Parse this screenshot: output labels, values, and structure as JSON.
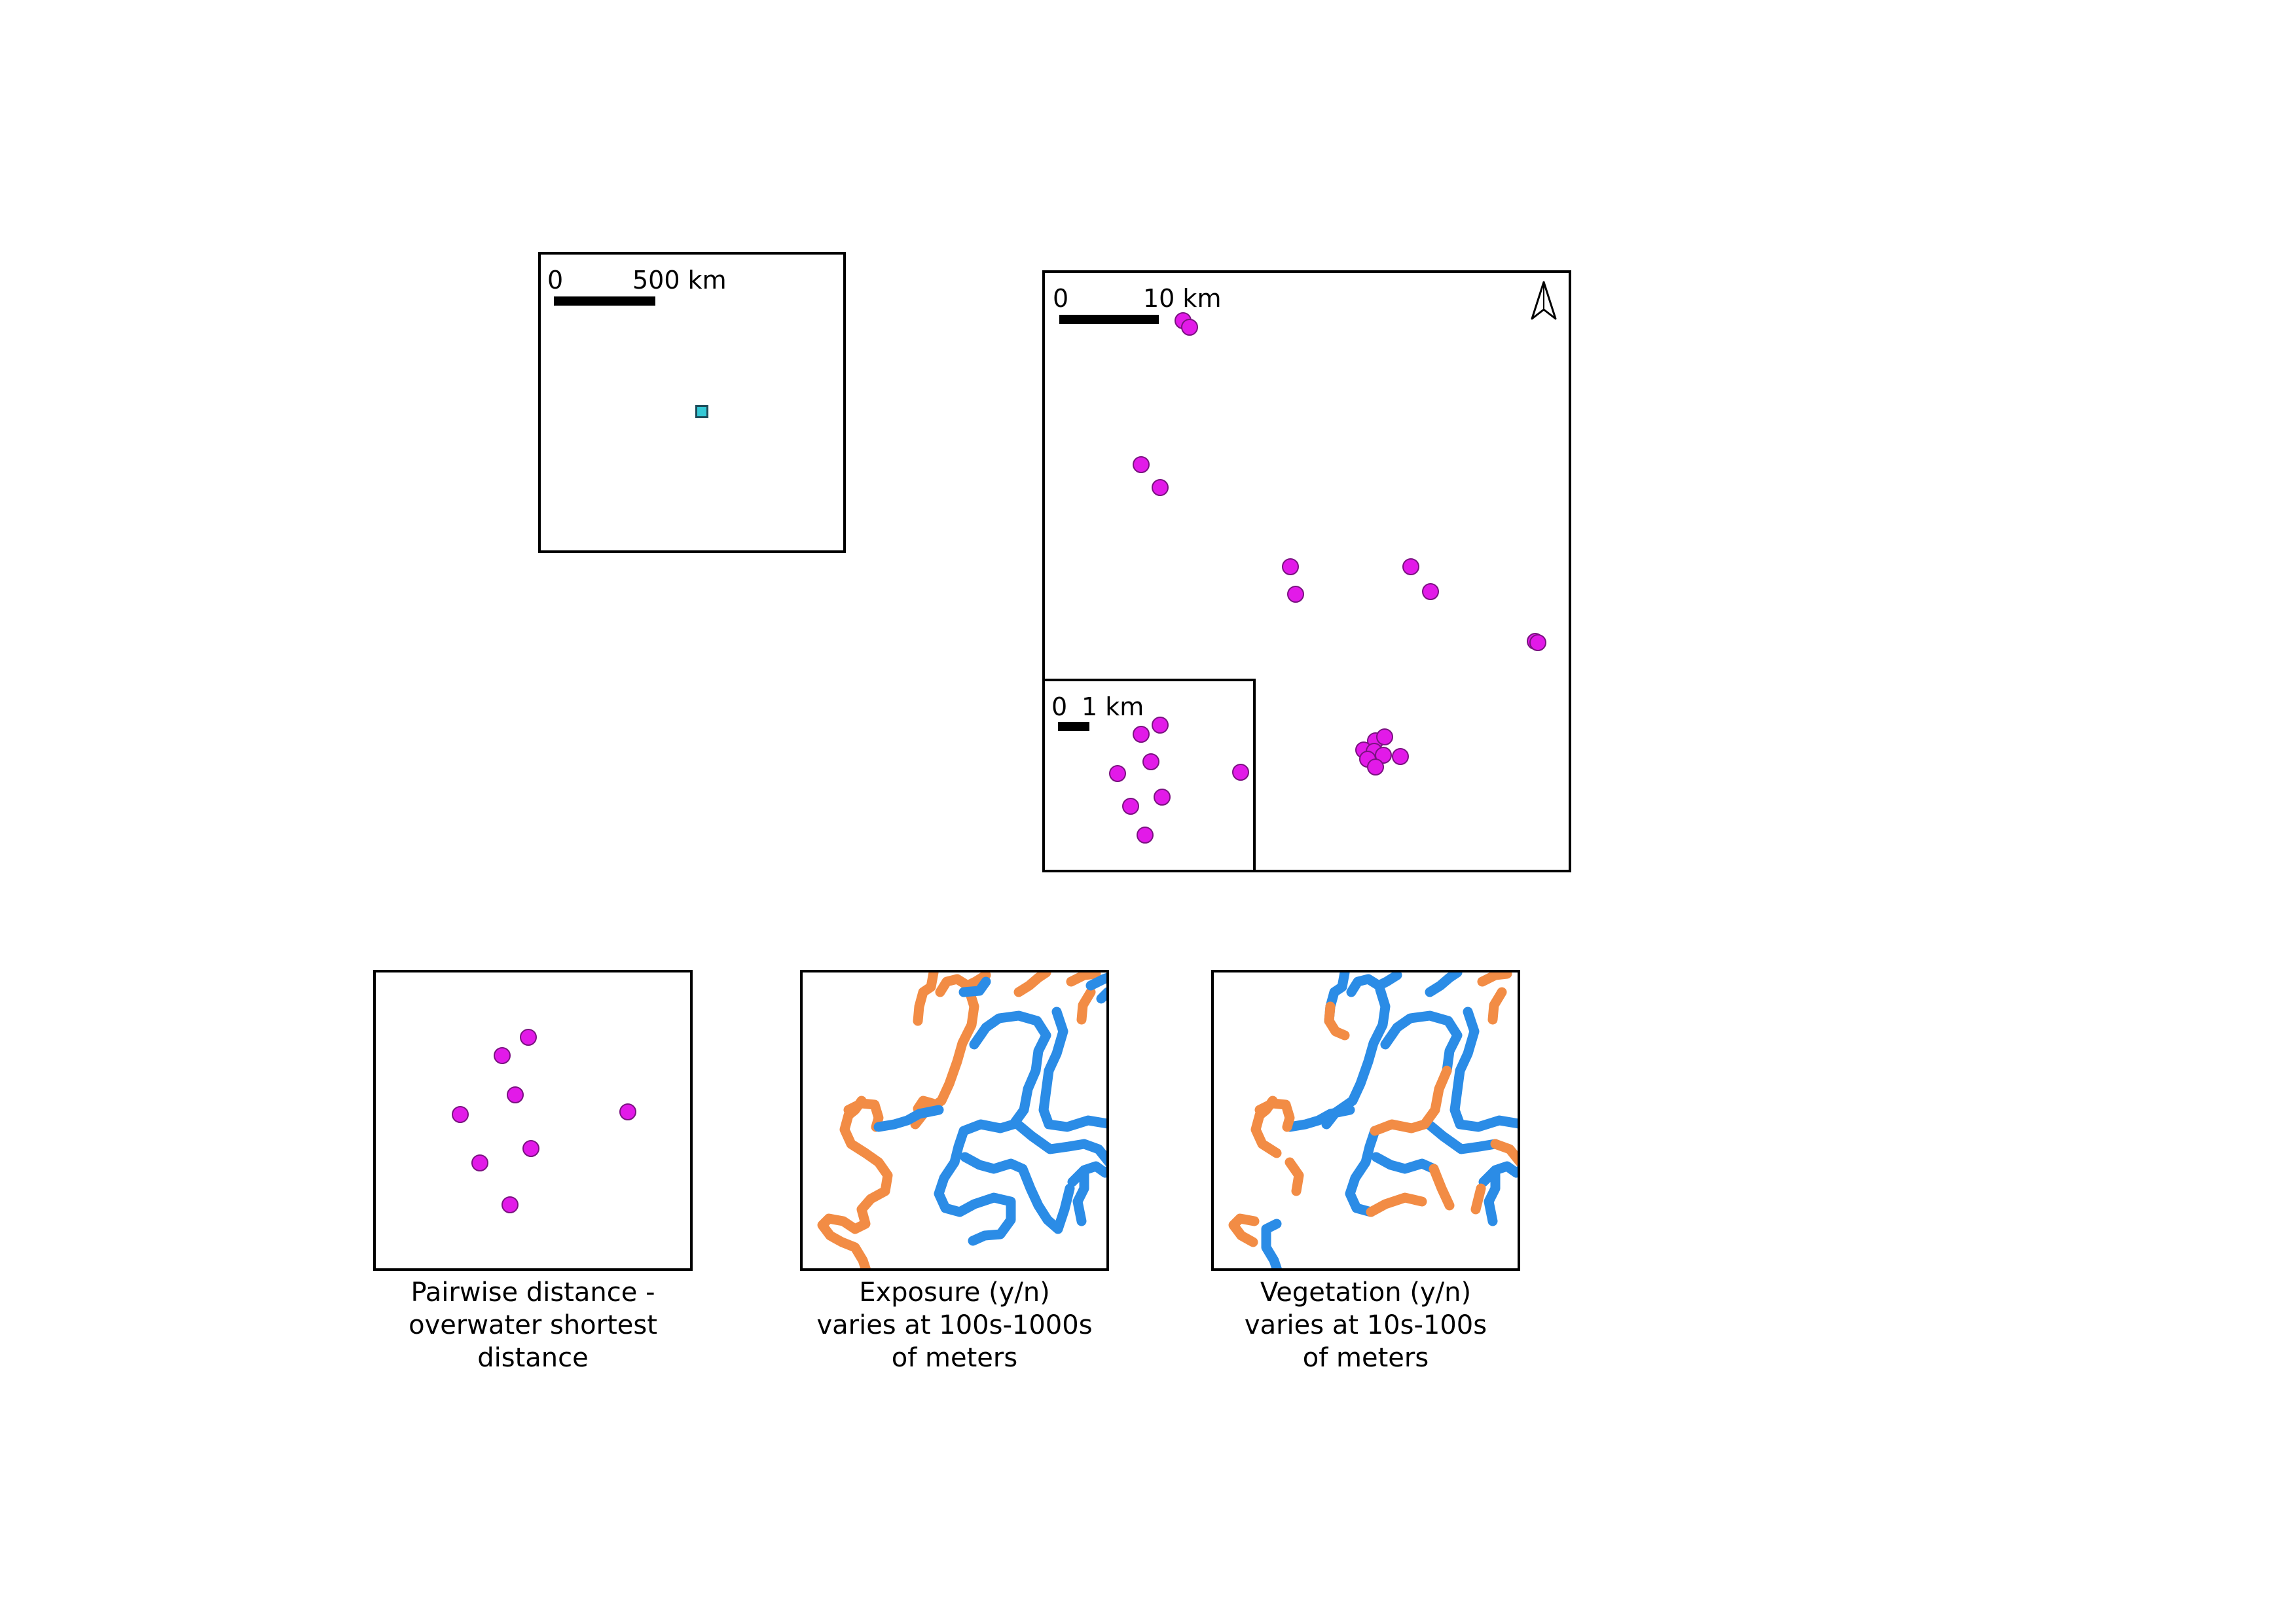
{
  "overview_map": {
    "scale": {
      "start": "0",
      "end": "500 km"
    },
    "marker_color": "#35c9d6"
  },
  "detail_map": {
    "scale": {
      "start": "0",
      "end": "10 km"
    },
    "point_color": "#e21ae8",
    "inset": {
      "scale": {
        "start": "0",
        "end": "1 km"
      }
    }
  },
  "panels": [
    {
      "caption": [
        "Pairwise distance -",
        "overwater shortest",
        "distance"
      ]
    },
    {
      "caption": [
        "Exposure (y/n)",
        "varies at 100s-1000s",
        "of meters"
      ]
    },
    {
      "caption": [
        "Vegetation (y/n)",
        "varies at 10s-100s",
        "of meters"
      ]
    }
  ],
  "colors": {
    "orange": "#f28c45",
    "blue": "#2b8ce6",
    "magenta": "#e21ae8"
  }
}
